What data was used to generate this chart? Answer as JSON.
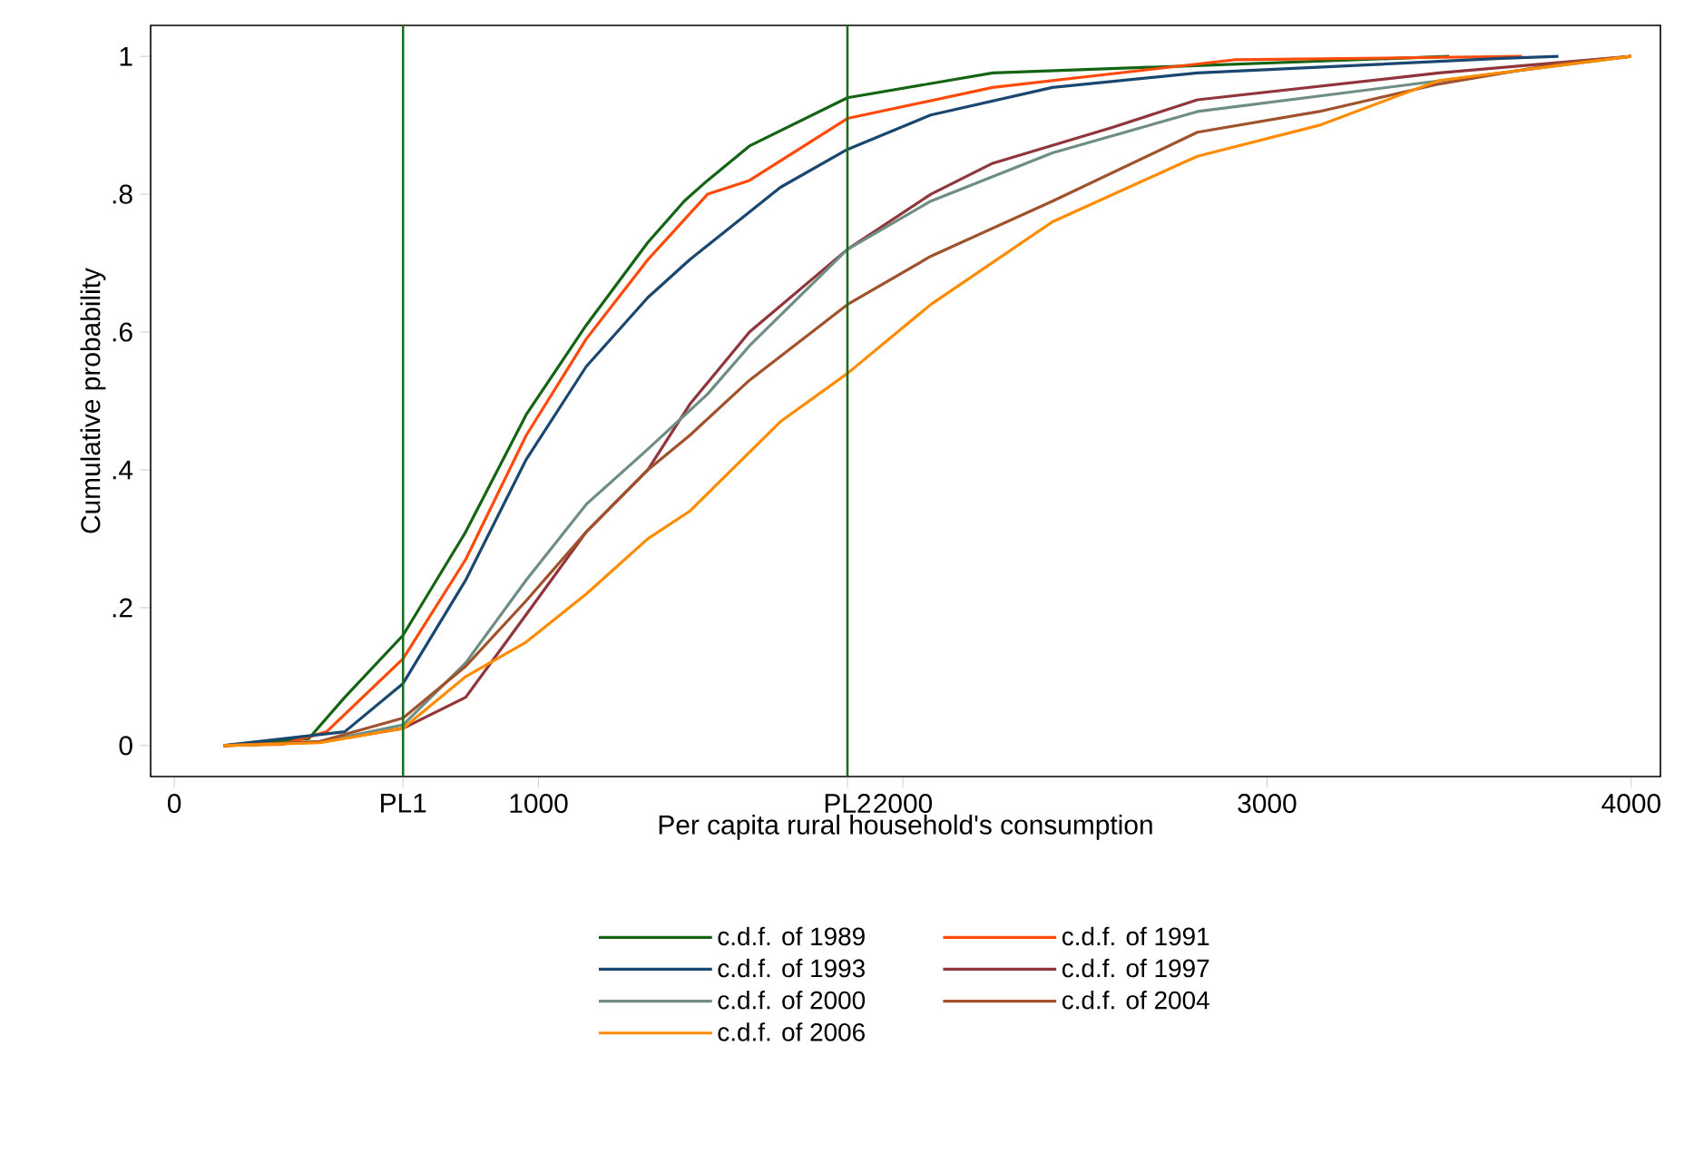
{
  "chart_data": {
    "type": "line",
    "xlabel": "Per capita rural household's consumption",
    "ylabel": "Cumulative probability",
    "xlim": [
      -65,
      4080
    ],
    "ylim": [
      -0.045,
      1.045
    ],
    "xticks": [
      0,
      {
        "value": 628,
        "label": "PL1"
      },
      1000,
      {
        "value": 1848,
        "label": "PL2"
      },
      2000,
      3000,
      4000
    ],
    "yticks": [
      0,
      {
        "value": 0.2,
        "label": ".2"
      },
      {
        "value": 0.4,
        "label": ".4"
      },
      {
        "value": 0.6,
        "label": ".6"
      },
      {
        "value": 0.8,
        "label": ".8"
      },
      1
    ],
    "legend": "bottom",
    "ref_lines": [
      {
        "axis": "x",
        "value": 628,
        "color": "#1b6e1b"
      },
      {
        "axis": "x",
        "value": 1848,
        "color": "#1b6e1b"
      }
    ],
    "series": [
      {
        "name": "c.d.f. of  1989",
        "color": "#146414",
        "x": [
          135,
          369,
          468,
          628,
          800,
          966,
          1131,
          1300,
          1400,
          1464,
          1579,
          1848,
          2247,
          3500
        ],
        "values": [
          0,
          0.01,
          0.07,
          0.16,
          0.31,
          0.48,
          0.61,
          0.73,
          0.79,
          0.82,
          0.87,
          0.94,
          0.976,
          1
        ]
      },
      {
        "name": "c.d.f. of  1991",
        "color": "#ff4a0a",
        "x": [
          135,
          300,
          418,
          628,
          800,
          966,
          1131,
          1300,
          1464,
          1579,
          1848,
          2247,
          2909,
          3700
        ],
        "values": [
          0,
          0.002,
          0.02,
          0.126,
          0.27,
          0.45,
          0.59,
          0.705,
          0.8,
          0.82,
          0.91,
          0.955,
          0.995,
          1
        ]
      },
      {
        "name": "c.d.f. of  1993",
        "color": "#1a476f",
        "x": [
          135,
          468,
          628,
          800,
          966,
          1131,
          1300,
          1415,
          1664,
          1848,
          2077,
          2411,
          2809,
          3641,
          3800
        ],
        "values": [
          0,
          0.02,
          0.09,
          0.24,
          0.415,
          0.55,
          0.65,
          0.705,
          0.81,
          0.865,
          0.915,
          0.955,
          0.976,
          0.997,
          1
        ]
      },
      {
        "name": "c.d.f. of  1997",
        "color": "#90353b",
        "x": [
          135,
          400,
          628,
          800,
          966,
          1131,
          1300,
          1415,
          1579,
          1848,
          2077,
          2247,
          2575,
          2809,
          3472,
          4000
        ],
        "values": [
          0,
          0.005,
          0.025,
          0.07,
          0.19,
          0.31,
          0.4,
          0.495,
          0.6,
          0.72,
          0.8,
          0.845,
          0.897,
          0.937,
          0.976,
          1
        ]
      },
      {
        "name": "c.d.f. of  2000",
        "color": "#6e8e84",
        "x": [
          135,
          400,
          628,
          800,
          966,
          1131,
          1300,
          1464,
          1579,
          1848,
          2077,
          2411,
          2809,
          4000
        ],
        "values": [
          0,
          0.005,
          0.03,
          0.12,
          0.24,
          0.35,
          0.43,
          0.51,
          0.58,
          0.72,
          0.79,
          0.86,
          0.92,
          1
        ]
      },
      {
        "name": "c.d.f. of  2004",
        "color": "#a0522d",
        "x": [
          135,
          400,
          628,
          800,
          966,
          1131,
          1300,
          1415,
          1579,
          1848,
          2077,
          2411,
          2809,
          3143,
          3472,
          3806,
          4000
        ],
        "values": [
          0,
          0.006,
          0.04,
          0.115,
          0.21,
          0.31,
          0.4,
          0.45,
          0.53,
          0.64,
          0.71,
          0.79,
          0.89,
          0.92,
          0.96,
          0.99,
          1
        ]
      },
      {
        "name": "c.d.f. of  2006",
        "color": "#ff8c00",
        "x": [
          135,
          400,
          628,
          800,
          966,
          1131,
          1300,
          1415,
          1664,
          1848,
          2077,
          2411,
          2745,
          2809,
          3143,
          3472,
          4000
        ],
        "values": [
          0,
          0.004,
          0.025,
          0.1,
          0.15,
          0.22,
          0.3,
          0.34,
          0.47,
          0.54,
          0.64,
          0.76,
          0.84,
          0.855,
          0.9,
          0.965,
          1
        ]
      }
    ]
  }
}
